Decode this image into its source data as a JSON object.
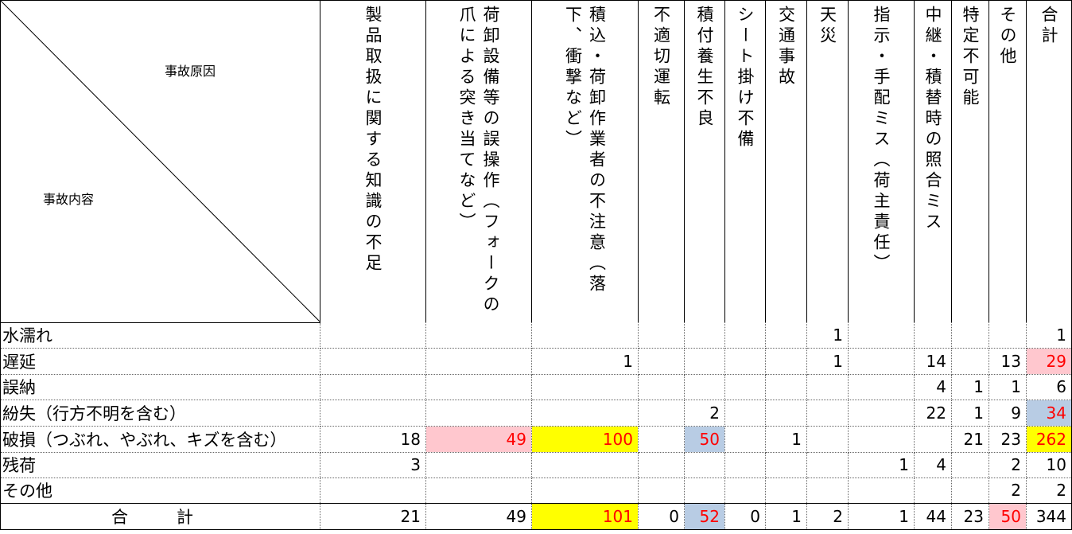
{
  "header": {
    "corner_top": "事故原因",
    "corner_bottom": "事故内容",
    "columns": [
      "製品取扱に関する知識の不足",
      "荷卸設備等の誤操作（フォークの爪による突き当てなど）",
      "積込・荷卸作業者の不注意（落下、衝撃など）",
      "不適切運転",
      "積付養生不良",
      "シート掛け不備",
      "交通事故",
      "天災",
      "指示・手配ミス（荷主責任）",
      "中継・積替時の照合ミス",
      "特定不可能",
      "その他",
      "合計"
    ]
  },
  "rows": [
    {
      "label": "水濡れ",
      "cells": [
        "",
        "",
        "",
        "",
        "",
        "",
        "",
        "1",
        "",
        "",
        "",
        "",
        "1"
      ]
    },
    {
      "label": "遅延",
      "cells": [
        "",
        "",
        "1",
        "",
        "",
        "",
        "",
        "1",
        "",
        "14",
        "",
        "13",
        "29"
      ]
    },
    {
      "label": "誤納",
      "cells": [
        "",
        "",
        "",
        "",
        "",
        "",
        "",
        "",
        "",
        "4",
        "1",
        "1",
        "6"
      ]
    },
    {
      "label": "紛失（行方不明を含む）",
      "cells": [
        "",
        "",
        "",
        "",
        "2",
        "",
        "",
        "",
        "",
        "22",
        "1",
        "9",
        "34"
      ]
    },
    {
      "label": "破損（つぶれ、やぶれ、キズを含む）",
      "cells": [
        "18",
        "49",
        "100",
        "",
        "50",
        "",
        "1",
        "",
        "",
        "",
        "21",
        "23",
        "262"
      ]
    },
    {
      "label": "残荷",
      "cells": [
        "3",
        "",
        "",
        "",
        "",
        "",
        "",
        "",
        "1",
        "4",
        "",
        "2",
        "10"
      ]
    },
    {
      "label": "その他",
      "cells": [
        "",
        "",
        "",
        "",
        "",
        "",
        "",
        "",
        "",
        "",
        "",
        "2",
        "2"
      ]
    }
  ],
  "total": {
    "label": "合　計",
    "cells": [
      "21",
      "49",
      "101",
      "0",
      "52",
      "0",
      "1",
      "2",
      "1",
      "44",
      "23",
      "50",
      "344"
    ]
  },
  "highlight_colors": {
    "red_text": "#ff0000",
    "pink": "#ffc7ce",
    "yellow": "#ffff00",
    "blue": "#b8cce4"
  }
}
